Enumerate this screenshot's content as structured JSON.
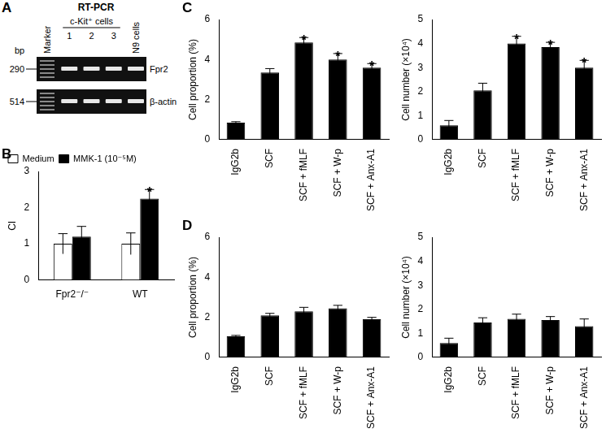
{
  "gel": {
    "title": "A",
    "subtitle": "RT-PCR",
    "lanes": [
      "Marker",
      "1",
      "2",
      "3",
      "N9 cells"
    ],
    "group_label": "c-Kit⁺ cells",
    "bands": [
      "Fpr2",
      "β-actin"
    ],
    "size_unit": "bp",
    "sizes": [
      290,
      514
    ]
  },
  "chart_data": [
    {
      "type": "bar",
      "title": "B",
      "y_label": "CI",
      "categories": [
        "Fpr2⁻/⁻",
        "WT"
      ],
      "series": [
        {
          "name": "Medium",
          "color": "#ffffff",
          "values": [
            1,
            1
          ],
          "error": [
            0.28,
            0.3
          ]
        },
        {
          "name": "MMK-1 (10⁻⁵M)",
          "color": "#000000",
          "values": [
            1.2,
            2.25
          ],
          "error": [
            0.28,
            0.25
          ],
          "significance": [
            null,
            "*"
          ]
        }
      ],
      "ylim": [
        0,
        3
      ],
      "yticks": [
        0,
        1,
        2,
        3
      ],
      "legend": "top-left",
      "grid": false
    },
    {
      "type": "bar",
      "title": "C",
      "y_label": "Cell proportion (%)",
      "categories": [
        "IgG2b",
        "SCF",
        "SCF + fMLF",
        "SCF + W-p",
        "SCF + Anx-A1"
      ],
      "values": [
        0.85,
        3.35,
        4.85,
        4.0,
        3.6
      ],
      "error": [
        0.05,
        0.2,
        0.25,
        0.3,
        0.2
      ],
      "significance": [
        null,
        null,
        "*",
        "*",
        "*"
      ],
      "color": "#000000",
      "ylim": [
        0,
        6
      ],
      "yticks": [
        0,
        2,
        4,
        6
      ],
      "grid": false
    },
    {
      "type": "bar",
      "y_label": "Cell number (×10⁴)",
      "categories": [
        "IgG2b",
        "SCF",
        "SCF + fMLF",
        "SCF + W-p",
        "SCF + Anx-A1"
      ],
      "values": [
        0.6,
        2.05,
        4.0,
        3.85,
        3.0
      ],
      "error": [
        0.2,
        0.3,
        0.3,
        0.2,
        0.3
      ],
      "significance": [
        null,
        null,
        "*",
        "*",
        "*"
      ],
      "color": "#000000",
      "ylim": [
        0,
        5
      ],
      "yticks": [
        0,
        1,
        2,
        3,
        4,
        5
      ],
      "grid": false
    },
    {
      "type": "bar",
      "title": "D",
      "y_label": "Cell proportion (%)",
      "categories": [
        "IgG2b",
        "SCF",
        "SCF + fMLF",
        "SCF + W-p",
        "SCF + Anx-A1"
      ],
      "values": [
        1.05,
        2.1,
        2.3,
        2.45,
        1.9
      ],
      "error": [
        0.05,
        0.1,
        0.2,
        0.15,
        0.1
      ],
      "color": "#000000",
      "ylim": [
        0,
        6
      ],
      "yticks": [
        0,
        2,
        4,
        6
      ],
      "grid": false
    },
    {
      "type": "bar",
      "y_label": "Cell number (×10⁴)",
      "categories": [
        "IgG2b",
        "SCF",
        "SCF + fMLF",
        "SCF + W-p",
        "SCF + Anx-A1"
      ],
      "values": [
        0.6,
        1.45,
        1.6,
        1.55,
        1.3
      ],
      "error": [
        0.2,
        0.2,
        0.2,
        0.15,
        0.3
      ],
      "color": "#000000",
      "ylim": [
        0,
        5
      ],
      "yticks": [
        0,
        1,
        2,
        3,
        4,
        5
      ],
      "grid": false
    }
  ]
}
